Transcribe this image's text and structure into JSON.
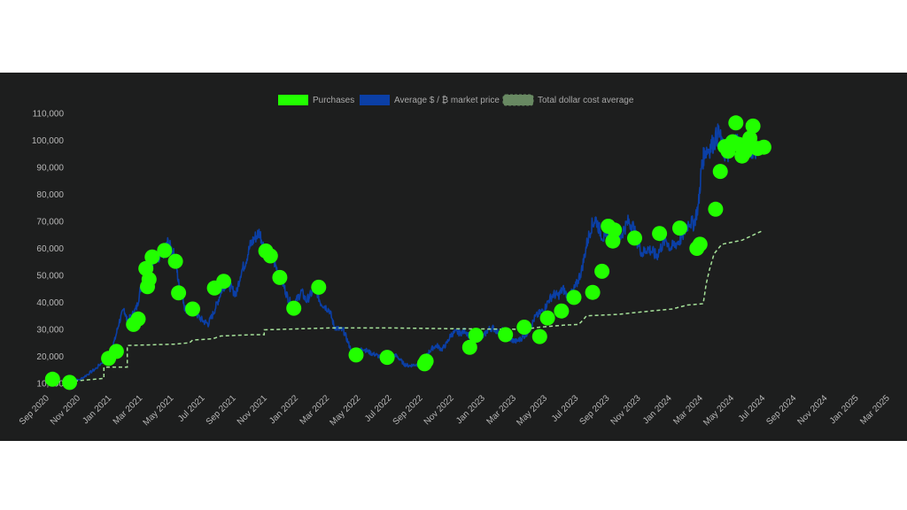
{
  "chart_data": {
    "type": "line",
    "title": "",
    "xlabel": "",
    "ylabel": "",
    "legend": {
      "placement": "top-center",
      "entries": [
        {
          "label": "Purchases",
          "color": "#22ff00",
          "kind": "box"
        },
        {
          "label": "Average $ / ₿ market price",
          "color": "#0b3fa6",
          "kind": "box"
        },
        {
          "label": "Total dollar cost average",
          "color": "#a6e29a",
          "kind": "dashed"
        }
      ]
    },
    "grid": false,
    "x_ticks": [
      "Sep 2020",
      "Nov 2020",
      "Jan 2021",
      "Mar 2021",
      "May 2021",
      "Jul 2021",
      "Sep 2021",
      "Nov 2021",
      "Jan 2022",
      "Mar 2022",
      "May 2022",
      "Jul 2022",
      "Sep 2022",
      "Nov 2022",
      "Jan 2023",
      "Mar 2023",
      "May 2023",
      "Jul 2023",
      "Sep 2023",
      "Nov 2023",
      "Jan 2024",
      "Mar 2024",
      "May 2024",
      "Jul 2024",
      "Sep 2024",
      "Nov 2024",
      "Jan 2025",
      "Mar 2025"
    ],
    "y_ticks": [
      "10,000",
      "20,000",
      "30,000",
      "40,000",
      "50,000",
      "60,000",
      "70,000",
      "80,000",
      "90,000",
      "100,000",
      "110,000"
    ],
    "xlim_month_index": [
      -0.5,
      54.3
    ],
    "ylim": [
      7000,
      112000
    ],
    "colors": {
      "purchases": "#22ff00",
      "market_price": "#0b3fa6",
      "cost_average": "#a6e29a",
      "background": "#1d1e1e"
    },
    "series": [
      {
        "name": "Average $ / ₿ market price",
        "points": [
          [
            1.2,
            10300
          ],
          [
            2.0,
            11500
          ],
          [
            2.5,
            13500
          ],
          [
            3.0,
            15500
          ],
          [
            3.5,
            18500
          ],
          [
            3.9,
            21500
          ],
          [
            4.2,
            26000
          ],
          [
            4.5,
            33000
          ],
          [
            4.8,
            37500
          ],
          [
            5.0,
            33000
          ],
          [
            5.3,
            35000
          ],
          [
            5.6,
            38000
          ],
          [
            5.9,
            46000
          ],
          [
            6.1,
            50500
          ],
          [
            6.3,
            46000
          ],
          [
            6.5,
            52000
          ],
          [
            6.8,
            57000
          ],
          [
            7.0,
            55000
          ],
          [
            7.3,
            58000
          ],
          [
            7.6,
            62000
          ],
          [
            7.9,
            59000
          ],
          [
            8.1,
            56000
          ],
          [
            8.3,
            47000
          ],
          [
            8.5,
            44000
          ],
          [
            8.7,
            38000
          ],
          [
            9.0,
            36000
          ],
          [
            9.3,
            37000
          ],
          [
            9.6,
            34500
          ],
          [
            9.9,
            33000
          ],
          [
            10.2,
            32000
          ],
          [
            10.5,
            35500
          ],
          [
            10.8,
            40000
          ],
          [
            11.1,
            45000
          ],
          [
            11.4,
            47500
          ],
          [
            11.7,
            45000
          ],
          [
            12.0,
            43000
          ],
          [
            12.3,
            51000
          ],
          [
            12.6,
            55000
          ],
          [
            12.9,
            61000
          ],
          [
            13.2,
            64000
          ],
          [
            13.5,
            66000
          ],
          [
            13.8,
            60000
          ],
          [
            14.1,
            58000
          ],
          [
            14.4,
            55500
          ],
          [
            14.7,
            51000
          ],
          [
            15.0,
            47000
          ],
          [
            15.3,
            42000
          ],
          [
            15.6,
            38500
          ],
          [
            15.9,
            41000
          ],
          [
            16.2,
            44000
          ],
          [
            16.5,
            40500
          ],
          [
            16.8,
            43000
          ],
          [
            17.1,
            45500
          ],
          [
            17.4,
            40000
          ],
          [
            17.7,
            38500
          ],
          [
            18.0,
            37000
          ],
          [
            18.3,
            31000
          ],
          [
            18.6,
            30000
          ],
          [
            18.9,
            29500
          ],
          [
            19.2,
            25000
          ],
          [
            19.5,
            20500
          ],
          [
            19.8,
            21000
          ],
          [
            20.1,
            23000
          ],
          [
            20.4,
            22000
          ],
          [
            20.7,
            21000
          ],
          [
            21.0,
            20500
          ],
          [
            21.3,
            19500
          ],
          [
            21.6,
            19000
          ],
          [
            21.9,
            19500
          ],
          [
            22.2,
            20500
          ],
          [
            22.5,
            19000
          ],
          [
            22.8,
            17000
          ],
          [
            23.1,
            16500
          ],
          [
            23.4,
            16800
          ],
          [
            23.7,
            17000
          ],
          [
            24.0,
            17500
          ],
          [
            24.3,
            21000
          ],
          [
            24.6,
            23000
          ],
          [
            24.9,
            24000
          ],
          [
            25.2,
            22500
          ],
          [
            25.5,
            24500
          ],
          [
            25.8,
            28000
          ],
          [
            26.1,
            29000
          ],
          [
            26.4,
            28500
          ],
          [
            26.7,
            29500
          ],
          [
            27.0,
            27500
          ],
          [
            27.3,
            27000
          ],
          [
            27.6,
            26500
          ],
          [
            27.9,
            27500
          ],
          [
            28.2,
            30000
          ],
          [
            28.5,
            30500
          ],
          [
            28.8,
            29000
          ],
          [
            29.1,
            29500
          ],
          [
            29.4,
            26500
          ],
          [
            29.7,
            26000
          ],
          [
            30.0,
            25500
          ],
          [
            30.3,
            26500
          ],
          [
            30.6,
            28000
          ],
          [
            30.9,
            30500
          ],
          [
            31.2,
            34500
          ],
          [
            31.5,
            36000
          ],
          [
            31.8,
            37500
          ],
          [
            32.1,
            41000
          ],
          [
            32.4,
            43000
          ],
          [
            32.7,
            42500
          ],
          [
            33.0,
            45000
          ],
          [
            33.3,
            42000
          ],
          [
            33.6,
            43500
          ],
          [
            33.9,
            47000
          ],
          [
            34.2,
            52000
          ],
          [
            34.5,
            61000
          ],
          [
            34.8,
            68000
          ],
          [
            35.1,
            71000
          ],
          [
            35.4,
            66000
          ],
          [
            35.7,
            63000
          ],
          [
            36.0,
            65000
          ],
          [
            36.3,
            68000
          ],
          [
            36.6,
            63000
          ],
          [
            36.9,
            67000
          ],
          [
            37.2,
            70000
          ],
          [
            37.5,
            68000
          ],
          [
            37.8,
            62000
          ],
          [
            38.1,
            58000
          ],
          [
            38.4,
            60000
          ],
          [
            38.7,
            59000
          ],
          [
            39.0,
            57000
          ],
          [
            39.3,
            60500
          ],
          [
            39.6,
            63500
          ],
          [
            39.9,
            60000
          ],
          [
            40.2,
            61500
          ],
          [
            40.5,
            63000
          ],
          [
            40.8,
            66000
          ],
          [
            41.1,
            70000
          ],
          [
            41.4,
            69000
          ],
          [
            41.7,
            76000
          ],
          [
            41.9,
            90000
          ],
          [
            42.1,
            96000
          ],
          [
            42.4,
            97000
          ],
          [
            42.7,
            99500
          ],
          [
            43.0,
            103000
          ],
          [
            43.3,
            96000
          ],
          [
            43.6,
            95000
          ],
          [
            43.9,
            98000
          ],
          [
            44.2,
            100000
          ],
          [
            44.5,
            97000
          ],
          [
            44.8,
            96000
          ],
          [
            45.1,
            97000
          ],
          [
            45.4,
            96500
          ]
        ]
      },
      {
        "name": "Total dollar cost average",
        "points": [
          [
            1.2,
            10600
          ],
          [
            3.5,
            11800
          ],
          [
            3.5,
            16000
          ],
          [
            5.0,
            16000
          ],
          [
            5.0,
            24000
          ],
          [
            8.0,
            24500
          ],
          [
            9.0,
            25000
          ],
          [
            9.2,
            26000
          ],
          [
            10.5,
            26500
          ],
          [
            11.0,
            27500
          ],
          [
            13.0,
            28000
          ],
          [
            13.8,
            28000
          ],
          [
            13.8,
            29800
          ],
          [
            15.0,
            30000
          ],
          [
            18.0,
            30500
          ],
          [
            22.0,
            30500
          ],
          [
            26.0,
            30200
          ],
          [
            30.5,
            30000
          ],
          [
            31.5,
            30800
          ],
          [
            33.0,
            31500
          ],
          [
            34.0,
            31800
          ],
          [
            34.3,
            33500
          ],
          [
            34.5,
            35000
          ],
          [
            36.5,
            35500
          ],
          [
            39.0,
            37000
          ],
          [
            40.0,
            37500
          ],
          [
            41.0,
            39000
          ],
          [
            42.0,
            39500
          ],
          [
            42.2,
            47000
          ],
          [
            42.4,
            52000
          ],
          [
            42.7,
            58000
          ],
          [
            43.2,
            61500
          ],
          [
            44.5,
            63000
          ],
          [
            45.8,
            66500
          ]
        ]
      }
    ],
    "purchases": [
      [
        0.2,
        11500
      ],
      [
        1.3,
        10300
      ],
      [
        3.8,
        19200
      ],
      [
        4.3,
        21800
      ],
      [
        5.4,
        31800
      ],
      [
        5.7,
        33800
      ],
      [
        6.2,
        52500
      ],
      [
        6.3,
        45800
      ],
      [
        6.4,
        48500
      ],
      [
        6.6,
        56800
      ],
      [
        7.4,
        59200
      ],
      [
        8.1,
        55200
      ],
      [
        8.3,
        43500
      ],
      [
        9.2,
        37500
      ],
      [
        10.6,
        45300
      ],
      [
        11.2,
        47800
      ],
      [
        13.9,
        59000
      ],
      [
        14.2,
        57200
      ],
      [
        14.8,
        49200
      ],
      [
        15.7,
        37800
      ],
      [
        17.3,
        45600
      ],
      [
        19.7,
        20500
      ],
      [
        21.7,
        19600
      ],
      [
        24.1,
        17200
      ],
      [
        24.2,
        18200
      ],
      [
        27.0,
        23300
      ],
      [
        27.4,
        27800
      ],
      [
        29.3,
        28000
      ],
      [
        30.5,
        30800
      ],
      [
        31.5,
        27300
      ],
      [
        32.0,
        34200
      ],
      [
        32.9,
        36800
      ],
      [
        33.7,
        41800
      ],
      [
        34.9,
        43700
      ],
      [
        35.5,
        51500
      ],
      [
        35.9,
        68200
      ],
      [
        36.2,
        62700
      ],
      [
        36.3,
        66800
      ],
      [
        37.6,
        63800
      ],
      [
        39.2,
        65500
      ],
      [
        40.5,
        67500
      ],
      [
        41.6,
        60000
      ],
      [
        41.8,
        61500
      ],
      [
        42.8,
        74500
      ],
      [
        43.1,
        88500
      ],
      [
        43.4,
        97700
      ],
      [
        43.6,
        96000
      ],
      [
        43.9,
        99500
      ],
      [
        44.1,
        106500
      ],
      [
        44.3,
        98500
      ],
      [
        44.5,
        94200
      ],
      [
        44.7,
        95800
      ],
      [
        44.8,
        96800
      ],
      [
        45.0,
        100800
      ],
      [
        45.2,
        105300
      ],
      [
        45.5,
        97000
      ],
      [
        45.9,
        97500
      ]
    ]
  }
}
